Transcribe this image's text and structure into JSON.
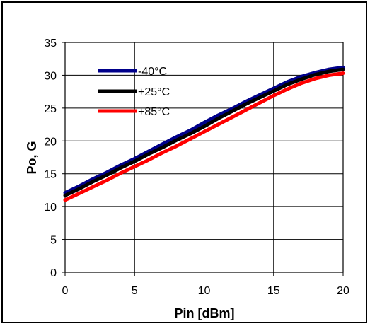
{
  "chart_data": {
    "type": "line",
    "xlabel": "Pin [dBm]",
    "ylabel": "Po, G",
    "xlim": [
      0,
      20
    ],
    "ylim": [
      0,
      35
    ],
    "xticks": [
      0,
      5,
      10,
      15,
      20
    ],
    "yticks": [
      0,
      5,
      10,
      15,
      20,
      25,
      30,
      35
    ],
    "grid": true,
    "legend_position": "top-left",
    "series": [
      {
        "name": "-40°C",
        "color": "#00008b",
        "x": [
          0,
          1,
          2,
          3,
          4,
          5,
          6,
          7,
          8,
          9,
          10,
          11,
          12,
          13,
          14,
          15,
          16,
          17,
          18,
          19,
          20
        ],
        "y": [
          12.1,
          13.1,
          14.2,
          15.2,
          16.3,
          17.3,
          18.4,
          19.5,
          20.6,
          21.6,
          22.8,
          23.9,
          24.9,
          26.0,
          27.0,
          28.0,
          29.0,
          29.8,
          30.4,
          30.9,
          31.2
        ]
      },
      {
        "name": "+25°C",
        "color": "#000000",
        "x": [
          0,
          1,
          2,
          3,
          4,
          5,
          6,
          7,
          8,
          9,
          10,
          11,
          12,
          13,
          14,
          15,
          16,
          17,
          18,
          19,
          20
        ],
        "y": [
          11.7,
          12.7,
          13.8,
          14.8,
          15.9,
          16.9,
          18.0,
          19.0,
          20.1,
          21.1,
          22.2,
          23.4,
          24.5,
          25.6,
          26.6,
          27.6,
          28.6,
          29.4,
          30.1,
          30.6,
          30.9
        ]
      },
      {
        "name": "+85°C",
        "color": "#ff0000",
        "x": [
          0,
          1,
          2,
          3,
          4,
          5,
          6,
          7,
          8,
          9,
          10,
          11,
          12,
          13,
          14,
          15,
          16,
          17,
          18,
          19,
          20
        ],
        "y": [
          11.0,
          12.0,
          13.0,
          14.0,
          15.1,
          16.1,
          17.1,
          18.2,
          19.2,
          20.3,
          21.4,
          22.5,
          23.6,
          24.7,
          25.8,
          26.9,
          27.9,
          28.8,
          29.5,
          30.0,
          30.3
        ]
      }
    ]
  }
}
